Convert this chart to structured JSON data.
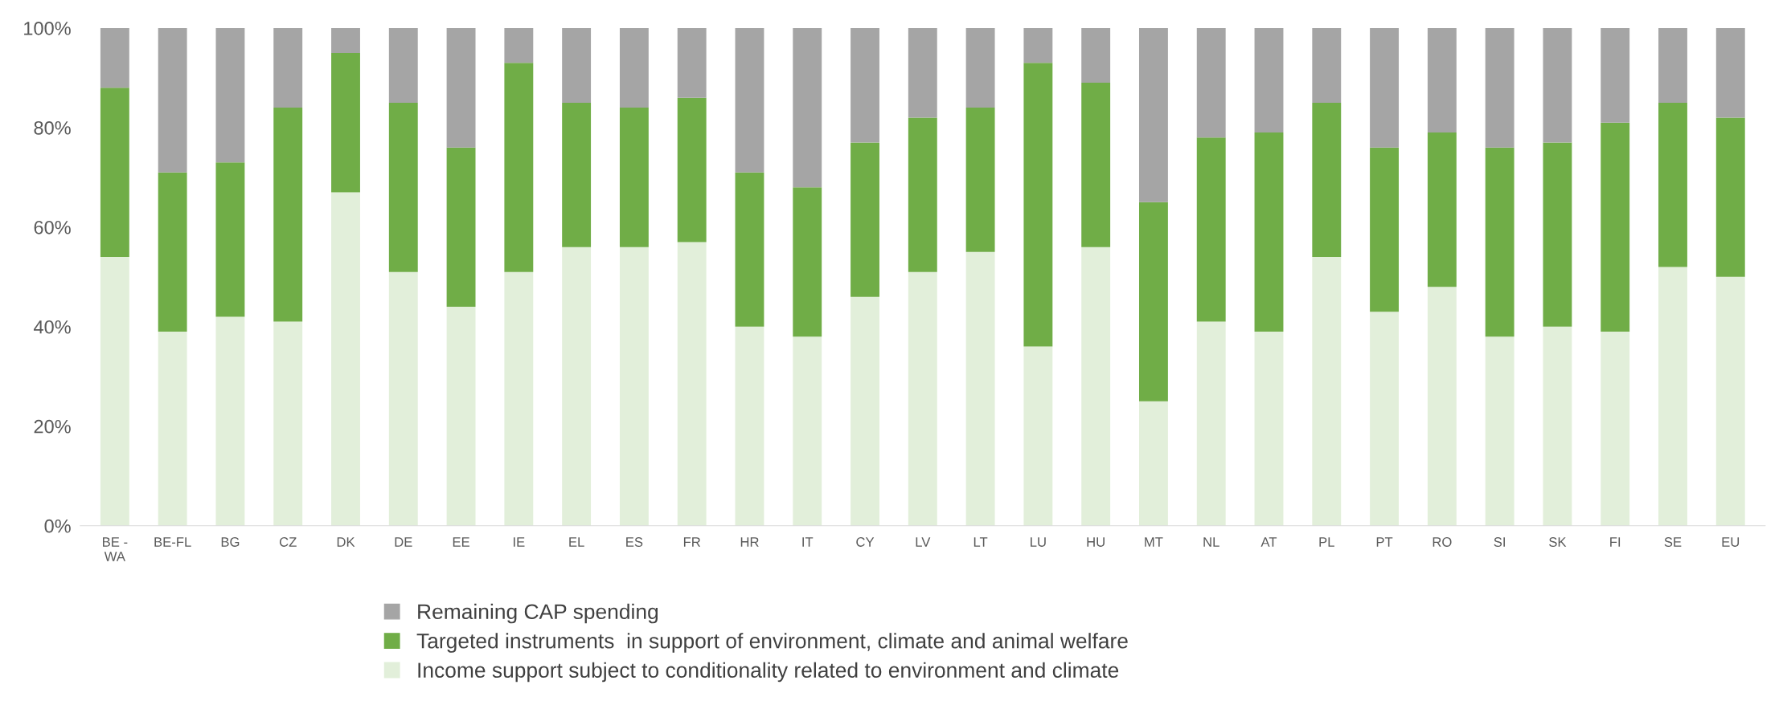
{
  "chart_data": {
    "type": "bar",
    "stacked": true,
    "categories": [
      "BE -\nWA",
      "BE-FL",
      "BG",
      "CZ",
      "DK",
      "DE",
      "EE",
      "IE",
      "EL",
      "ES",
      "FR",
      "HR",
      "IT",
      "CY",
      "LV",
      "LT",
      "LU",
      "HU",
      "MT",
      "NL",
      "AT",
      "PL",
      "PT",
      "RO",
      "SI",
      "SK",
      "FI",
      "SE",
      "EU"
    ],
    "series": [
      {
        "name": "Income support subject to conditionality related to environment and climate",
        "color": "#e2efda",
        "values": [
          54,
          39,
          42,
          41,
          67,
          51,
          44,
          51,
          56,
          56,
          57,
          40,
          38,
          46,
          51,
          55,
          36,
          56,
          25,
          41,
          39,
          54,
          43,
          48,
          38,
          40,
          39,
          52,
          50
        ]
      },
      {
        "name": "Targeted instruments  in support of environment, climate and animal welfare",
        "color": "#70ad47",
        "values": [
          34,
          32,
          31,
          43,
          28,
          34,
          32,
          42,
          29,
          28,
          29,
          31,
          30,
          31,
          31,
          29,
          57,
          33,
          40,
          37,
          40,
          31,
          33,
          31,
          38,
          37,
          42,
          33,
          32
        ]
      },
      {
        "name": "Remaining CAP spending",
        "color": "#a5a5a5",
        "values": [
          12,
          29,
          27,
          16,
          5,
          15,
          24,
          7,
          15,
          16,
          14,
          29,
          32,
          23,
          18,
          16,
          7,
          11,
          35,
          22,
          21,
          15,
          24,
          21,
          24,
          23,
          19,
          15,
          18
        ]
      }
    ],
    "ylim": [
      0,
      100
    ],
    "yticks": [
      {
        "value": 0,
        "label": "0%"
      },
      {
        "value": 20,
        "label": "20%"
      },
      {
        "value": 40,
        "label": "40%"
      },
      {
        "value": 60,
        "label": "60%"
      },
      {
        "value": 80,
        "label": "80%"
      },
      {
        "value": 100,
        "label": "100%"
      }
    ],
    "grid": false,
    "legend": "bottom"
  }
}
